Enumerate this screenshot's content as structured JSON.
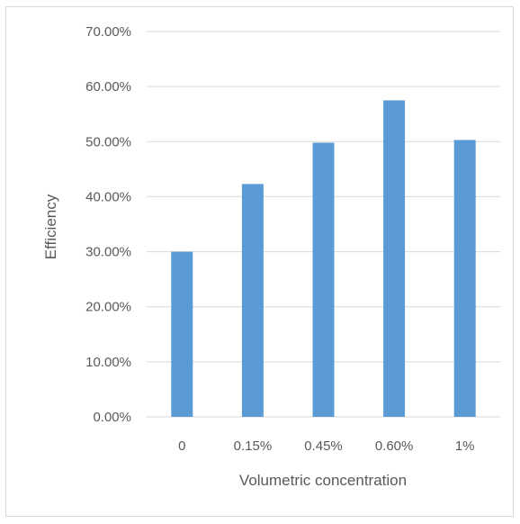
{
  "chart_data": {
    "type": "bar",
    "title": "",
    "xlabel": "Volumetric concentration",
    "ylabel": "Efficiency",
    "categories": [
      "0",
      "0.15%",
      "0.45%",
      "0.60%",
      "1%"
    ],
    "values": [
      0.3,
      0.423,
      0.498,
      0.575,
      0.503
    ],
    "ylim": [
      0,
      0.7
    ],
    "yticks": [
      0,
      0.1,
      0.2,
      0.3,
      0.4,
      0.5,
      0.6,
      0.7
    ],
    "ytick_labels": [
      "0.00%",
      "10.00%",
      "20.00%",
      "30.00%",
      "40.00%",
      "50.00%",
      "60.00%",
      "70.00%"
    ],
    "grid": true,
    "legend": "none",
    "bar_color": "#5b9bd5",
    "grid_color": "#d9d9d9"
  }
}
